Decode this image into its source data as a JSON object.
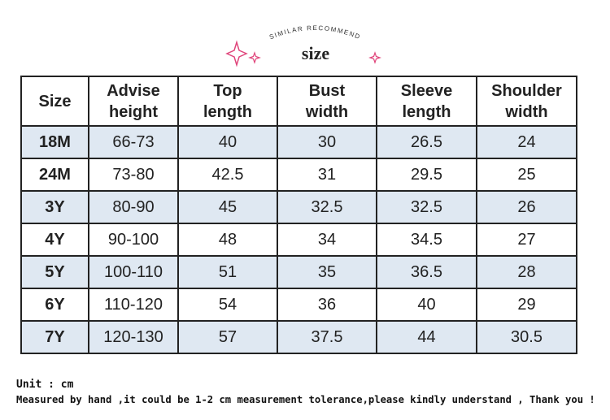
{
  "header": {
    "arc_text": "SIMILAR RECOMMEND",
    "title": "size"
  },
  "table": {
    "columns": [
      "Size",
      "Advise\nheight",
      "Top\nlength",
      "Bust\nwidth",
      "Sleeve\nlength",
      "Shoulder\nwidth"
    ],
    "rows": [
      [
        "18M",
        "66-73",
        40,
        30,
        26.5,
        24
      ],
      [
        "24M",
        "73-80",
        42.5,
        31,
        29.5,
        25
      ],
      [
        "3Y",
        "80-90",
        45,
        32.5,
        32.5,
        26
      ],
      [
        "4Y",
        "90-100",
        48,
        34,
        34.5,
        27
      ],
      [
        "5Y",
        "100-110",
        51,
        35,
        36.5,
        28
      ],
      [
        "6Y",
        "110-120",
        54,
        36,
        40,
        29
      ],
      [
        "7Y",
        "120-130",
        57,
        37.5,
        44,
        30.5
      ]
    ]
  },
  "footer": {
    "unit": "Unit : cm",
    "note": "Measured by hand ,it could be 1-2 cm measurement tolerance,please kindly understand , Thank you !"
  }
}
